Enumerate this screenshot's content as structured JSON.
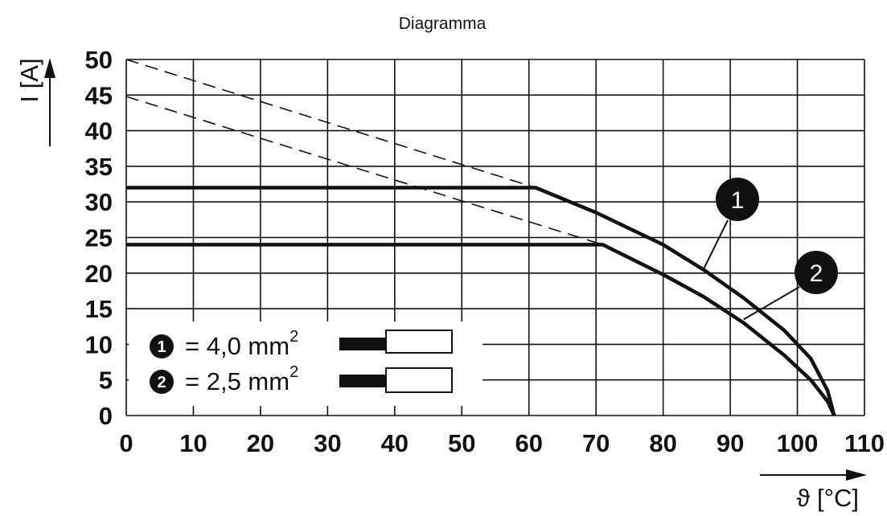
{
  "chart_data": {
    "type": "line",
    "title": "Diagramma",
    "xlabel": "ϑ [°C]",
    "ylabel": "I [A]",
    "xlim": [
      0,
      110
    ],
    "ylim": [
      0,
      50
    ],
    "x_ticks": [
      "0",
      "10",
      "20",
      "30",
      "40",
      "50",
      "60",
      "70",
      "80",
      "90",
      "100",
      "110"
    ],
    "y_ticks": [
      "0",
      "5",
      "10",
      "15",
      "20",
      "25",
      "30",
      "35",
      "40",
      "45",
      "50"
    ],
    "grid": true,
    "series": [
      {
        "name": "1",
        "solid": [
          [
            0,
            32
          ],
          [
            61,
            32
          ],
          [
            70,
            28.5
          ],
          [
            80,
            24
          ],
          [
            86,
            20.5
          ],
          [
            92,
            16.5
          ],
          [
            98,
            12
          ],
          [
            102,
            8
          ],
          [
            104.5,
            3.5
          ],
          [
            105.5,
            0
          ]
        ],
        "dashed": [
          [
            0,
            50
          ],
          [
            61,
            32
          ]
        ]
      },
      {
        "name": "2",
        "solid": [
          [
            0,
            24
          ],
          [
            71,
            24
          ],
          [
            80,
            19.8
          ],
          [
            86,
            16.7
          ],
          [
            92,
            13
          ],
          [
            98,
            8.5
          ],
          [
            102,
            5
          ],
          [
            104.5,
            2
          ],
          [
            105.5,
            0
          ]
        ],
        "dashed": [
          [
            0,
            44.8
          ],
          [
            71,
            24
          ]
        ]
      }
    ],
    "legend": {
      "placement": "bottom-left",
      "entries": [
        {
          "badge": "1",
          "text": "= 4,0 mm",
          "sup": "2"
        },
        {
          "badge": "2",
          "text": "= 2,5 mm",
          "sup": "2"
        }
      ]
    },
    "callouts": [
      {
        "badge": "1",
        "x": 86,
        "y": 20.5
      },
      {
        "badge": "2",
        "x": 92,
        "y": 13.5
      }
    ]
  }
}
